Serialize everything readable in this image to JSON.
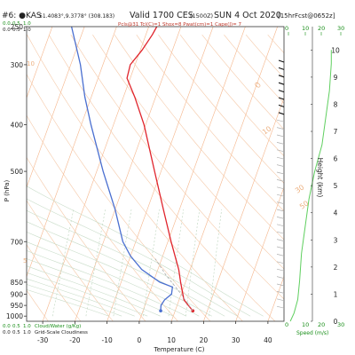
{
  "header": {
    "station": "#6: ●KAS",
    "coords": "51.4083°,9.3778° (308.183)",
    "valid": "Valid 1700 CES",
    "utc": "(1500Z)",
    "date": "SUN 4 Oct 2020",
    "fcst": "[15hrFcst@0652z]",
    "indices": "Pcls@31 Tcl(C)=1 Shox=8 Pwat(cm)=1 Cape(J)= 7"
  },
  "colors": {
    "temperature": "#e0242c",
    "dewpoint": "#4a6fd0",
    "isotherm": "#f5b58a",
    "dry_adiabat": "#f5c9a8",
    "moist_adiabat": "#c8dcc8",
    "mixing_ratio": "#bcd4bc",
    "wind_speed": "#5fcf5f",
    "accent_green": "#1a8f1a"
  },
  "top_scale_left": [
    "0.0",
    "0.5",
    "1.0"
  ],
  "top_scale_right": [
    "0",
    "10",
    "20",
    "30"
  ],
  "bottom_scale_left": {
    "row1": [
      "0.0",
      "0.5",
      "1.0"
    ],
    "row1_label": "Cloud/Water (g/Kg)",
    "row2": [
      "0.0",
      "0.5",
      "1.0"
    ],
    "row2_label": "Grid-Scale Cloudiness"
  },
  "bottom_scale_right": {
    "ticks": [
      "0",
      "10",
      "20",
      "30"
    ],
    "label": "Speed (m/s)"
  },
  "skew_labels": [
    "10",
    "0",
    "30",
    "5",
    "50"
  ],
  "chart_data": {
    "type": "line",
    "title": "Valid 1700 CES (1500Z) SUN 4 Oct 2020",
    "xlabel": "Temperature (C)",
    "ylabel": "P (hPa)",
    "y2label": "Height (km)",
    "xlim": [
      -35,
      45
    ],
    "ylim": [
      1000,
      250
    ],
    "y_scale": "log-pressure (inverted)",
    "x_ticks": [
      "-30",
      "-20",
      "-10",
      "0",
      "10",
      "20",
      "30",
      "40"
    ],
    "y_ticks": [
      "250",
      "300",
      "400",
      "500",
      "700",
      "850",
      "900",
      "950",
      "1000"
    ],
    "height_ticks": [
      "0",
      "1",
      "2",
      "3",
      "4",
      "5",
      "6",
      "7",
      "8",
      "9",
      "10"
    ],
    "series": [
      {
        "name": "Temperature",
        "points": [
          {
            "p": 975,
            "t": 15.5
          },
          {
            "p": 950,
            "t": 13.5
          },
          {
            "p": 925,
            "t": 11.5
          },
          {
            "p": 900,
            "t": 10.5
          },
          {
            "p": 850,
            "t": 8.5
          },
          {
            "p": 800,
            "t": 6.5
          },
          {
            "p": 700,
            "t": 1.0
          },
          {
            "p": 600,
            "t": -5.0
          },
          {
            "p": 500,
            "t": -12.0
          },
          {
            "p": 400,
            "t": -20.5
          },
          {
            "p": 350,
            "t": -26.5
          },
          {
            "p": 320,
            "t": -31.0
          },
          {
            "p": 300,
            "t": -31.5
          },
          {
            "p": 280,
            "t": -29.5
          },
          {
            "p": 260,
            "t": -28.0
          },
          {
            "p": 250,
            "t": -27.5
          }
        ]
      },
      {
        "name": "Dewpoint",
        "points": [
          {
            "p": 975,
            "t": 5.5
          },
          {
            "p": 950,
            "t": 5.0
          },
          {
            "p": 925,
            "t": 5.5
          },
          {
            "p": 900,
            "t": 7.0
          },
          {
            "p": 870,
            "t": 6.5
          },
          {
            "p": 850,
            "t": 2.0
          },
          {
            "p": 800,
            "t": -5.0
          },
          {
            "p": 750,
            "t": -10.0
          },
          {
            "p": 700,
            "t": -14.0
          },
          {
            "p": 600,
            "t": -20.0
          },
          {
            "p": 500,
            "t": -28.0
          },
          {
            "p": 400,
            "t": -37.0
          },
          {
            "p": 350,
            "t": -42.0
          },
          {
            "p": 300,
            "t": -47.0
          },
          {
            "p": 250,
            "t": -54.0
          }
        ]
      }
    ],
    "wind_speed_profile": [
      {
        "km": 0.0,
        "ms": 1
      },
      {
        "km": 0.3,
        "ms": 3
      },
      {
        "km": 0.8,
        "ms": 5
      },
      {
        "km": 1.5,
        "ms": 6
      },
      {
        "km": 2.5,
        "ms": 7
      },
      {
        "km": 3.5,
        "ms": 9
      },
      {
        "km": 4.5,
        "ms": 11
      },
      {
        "km": 5.5,
        "ms": 14
      },
      {
        "km": 6.5,
        "ms": 18
      },
      {
        "km": 7.5,
        "ms": 20
      },
      {
        "km": 8.5,
        "ms": 22
      },
      {
        "km": 9.5,
        "ms": 23
      },
      {
        "km": 10.0,
        "ms": 23
      }
    ]
  }
}
